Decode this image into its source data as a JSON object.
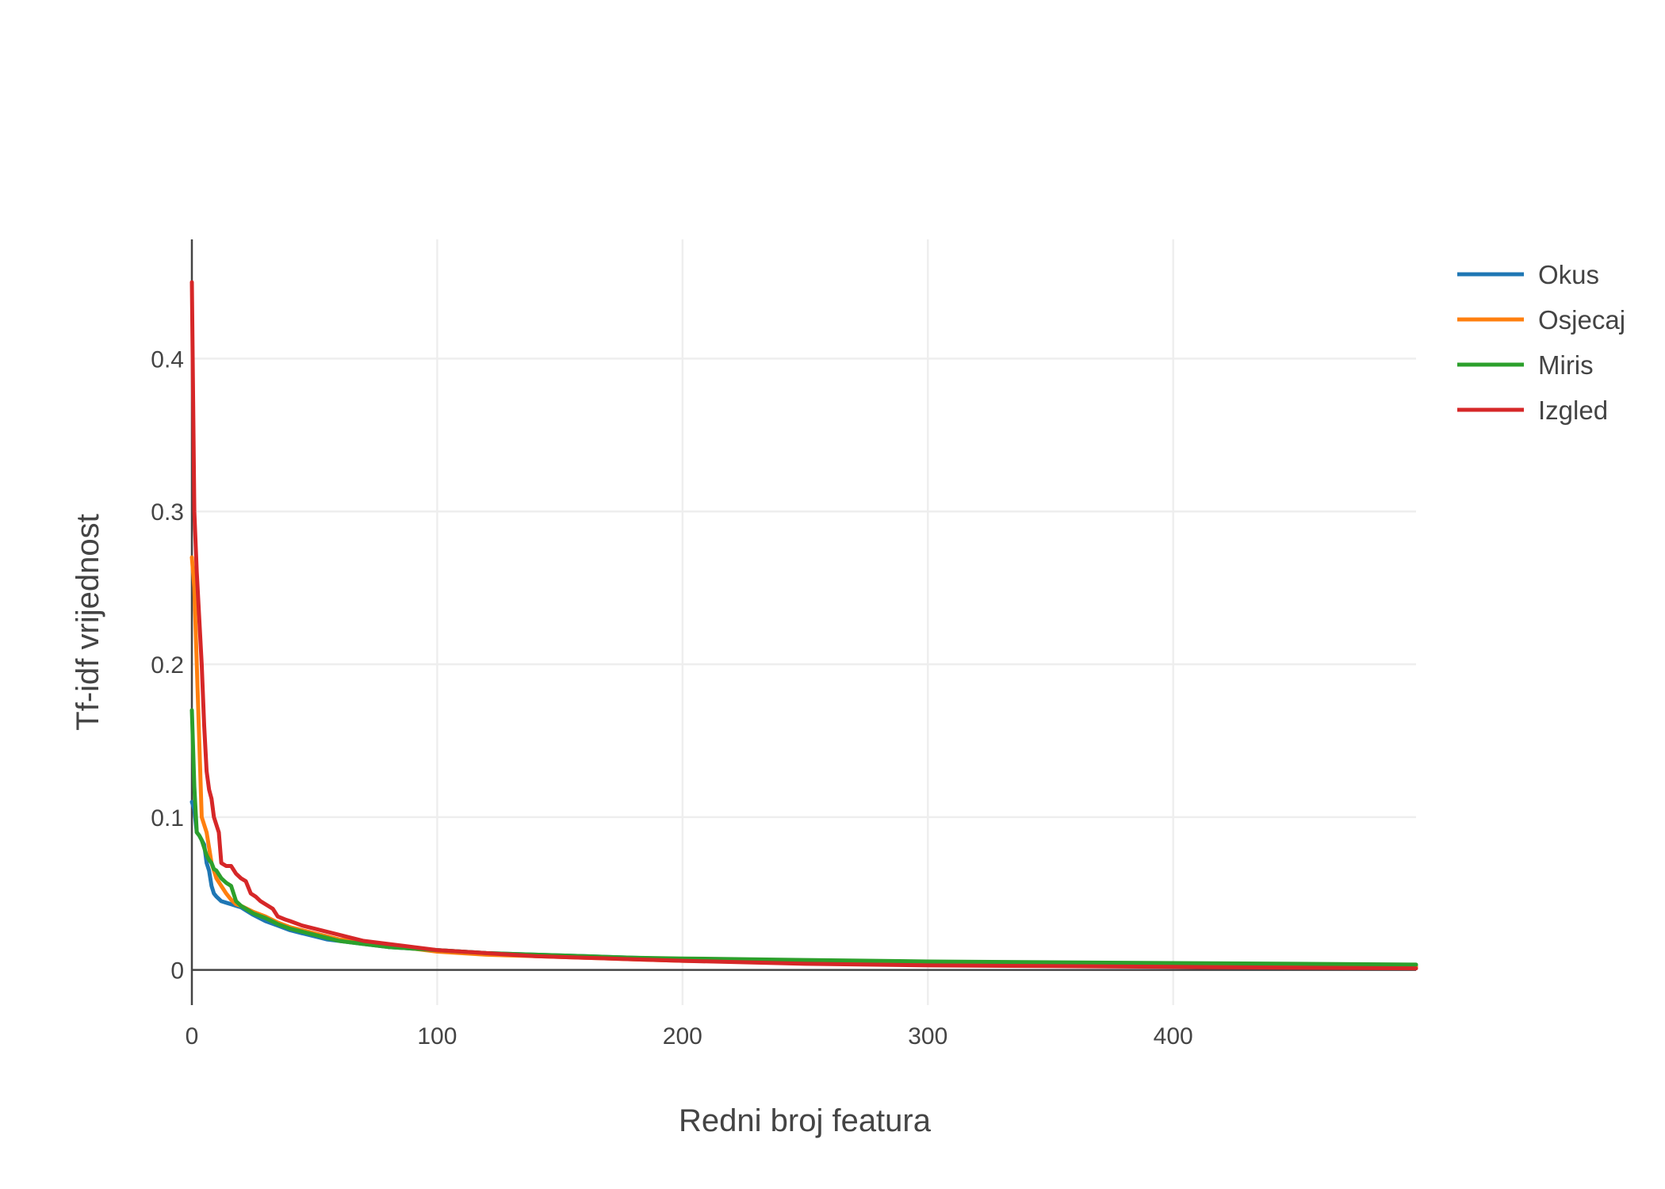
{
  "chart_data": {
    "type": "line",
    "title": "",
    "xlabel": "Redni broj featura",
    "ylabel": "Tf-idf vrijednost",
    "xlim": [
      0,
      499
    ],
    "ylim": [
      -0.023,
      0.478
    ],
    "grid": true,
    "legend_position": "top-right",
    "x_ticks": [
      {
        "value": 0,
        "label": "0"
      },
      {
        "value": 100,
        "label": "100"
      },
      {
        "value": 200,
        "label": "200"
      },
      {
        "value": 300,
        "label": "300"
      },
      {
        "value": 400,
        "label": "400"
      }
    ],
    "y_ticks": [
      {
        "value": 0,
        "label": "0"
      },
      {
        "value": 0.1,
        "label": "0.1"
      },
      {
        "value": 0.2,
        "label": "0.2"
      },
      {
        "value": 0.3,
        "label": "0.3"
      },
      {
        "value": 0.4,
        "label": "0.4"
      }
    ],
    "series": [
      {
        "name": "Okus",
        "color": "#1f77b4",
        "points": [
          [
            0,
            0.11
          ],
          [
            1,
            0.105
          ],
          [
            2,
            0.09
          ],
          [
            3,
            0.088
          ],
          [
            4,
            0.085
          ],
          [
            5,
            0.082
          ],
          [
            6,
            0.07
          ],
          [
            7,
            0.065
          ],
          [
            8,
            0.055
          ],
          [
            9,
            0.05
          ],
          [
            10,
            0.048
          ],
          [
            12,
            0.045
          ],
          [
            14,
            0.044
          ],
          [
            16,
            0.043
          ],
          [
            18,
            0.042
          ],
          [
            20,
            0.041
          ],
          [
            25,
            0.036
          ],
          [
            30,
            0.032
          ],
          [
            35,
            0.029
          ],
          [
            40,
            0.026
          ],
          [
            45,
            0.024
          ],
          [
            50,
            0.022
          ],
          [
            55,
            0.02
          ],
          [
            60,
            0.019
          ],
          [
            70,
            0.017
          ],
          [
            80,
            0.015
          ],
          [
            90,
            0.014
          ],
          [
            100,
            0.013
          ],
          [
            120,
            0.011
          ],
          [
            140,
            0.01
          ],
          [
            160,
            0.009
          ],
          [
            180,
            0.008
          ],
          [
            200,
            0.007
          ],
          [
            250,
            0.006
          ],
          [
            300,
            0.005
          ],
          [
            350,
            0.004
          ],
          [
            400,
            0.0035
          ],
          [
            450,
            0.003
          ],
          [
            499,
            0.0025
          ]
        ]
      },
      {
        "name": "Osjecaj",
        "color": "#ff7f0e",
        "points": [
          [
            0,
            0.27
          ],
          [
            1,
            0.25
          ],
          [
            2,
            0.2
          ],
          [
            3,
            0.15
          ],
          [
            4,
            0.1
          ],
          [
            5,
            0.095
          ],
          [
            6,
            0.09
          ],
          [
            7,
            0.08
          ],
          [
            8,
            0.07
          ],
          [
            9,
            0.065
          ],
          [
            10,
            0.06
          ],
          [
            12,
            0.055
          ],
          [
            14,
            0.05
          ],
          [
            16,
            0.046
          ],
          [
            18,
            0.043
          ],
          [
            20,
            0.042
          ],
          [
            25,
            0.038
          ],
          [
            30,
            0.035
          ],
          [
            35,
            0.031
          ],
          [
            40,
            0.028
          ],
          [
            45,
            0.026
          ],
          [
            50,
            0.024
          ],
          [
            55,
            0.022
          ],
          [
            60,
            0.02
          ],
          [
            70,
            0.018
          ],
          [
            80,
            0.016
          ],
          [
            90,
            0.014
          ],
          [
            100,
            0.012
          ],
          [
            120,
            0.01
          ],
          [
            140,
            0.009
          ],
          [
            160,
            0.008
          ],
          [
            180,
            0.007
          ],
          [
            200,
            0.006
          ],
          [
            250,
            0.005
          ],
          [
            300,
            0.004
          ],
          [
            350,
            0.0035
          ],
          [
            400,
            0.003
          ],
          [
            450,
            0.0025
          ],
          [
            499,
            0.002
          ]
        ]
      },
      {
        "name": "Miris",
        "color": "#2ca02c",
        "points": [
          [
            0,
            0.17
          ],
          [
            1,
            0.12
          ],
          [
            2,
            0.09
          ],
          [
            3,
            0.088
          ],
          [
            4,
            0.085
          ],
          [
            5,
            0.08
          ],
          [
            6,
            0.075
          ],
          [
            7,
            0.072
          ],
          [
            8,
            0.07
          ],
          [
            9,
            0.066
          ],
          [
            10,
            0.065
          ],
          [
            12,
            0.06
          ],
          [
            14,
            0.057
          ],
          [
            16,
            0.055
          ],
          [
            18,
            0.045
          ],
          [
            20,
            0.042
          ],
          [
            25,
            0.037
          ],
          [
            30,
            0.034
          ],
          [
            35,
            0.03
          ],
          [
            40,
            0.027
          ],
          [
            45,
            0.025
          ],
          [
            50,
            0.023
          ],
          [
            55,
            0.021
          ],
          [
            60,
            0.019
          ],
          [
            70,
            0.017
          ],
          [
            80,
            0.015
          ],
          [
            90,
            0.014
          ],
          [
            100,
            0.013
          ],
          [
            120,
            0.011
          ],
          [
            140,
            0.01
          ],
          [
            160,
            0.009
          ],
          [
            180,
            0.008
          ],
          [
            200,
            0.0075
          ],
          [
            250,
            0.0065
          ],
          [
            300,
            0.0055
          ],
          [
            350,
            0.005
          ],
          [
            400,
            0.0045
          ],
          [
            450,
            0.004
          ],
          [
            499,
            0.0035
          ]
        ]
      },
      {
        "name": "Izgled",
        "color": "#d62728",
        "points": [
          [
            0,
            0.45
          ],
          [
            1,
            0.3
          ],
          [
            2,
            0.26
          ],
          [
            3,
            0.23
          ],
          [
            4,
            0.2
          ],
          [
            5,
            0.16
          ],
          [
            6,
            0.13
          ],
          [
            7,
            0.118
          ],
          [
            8,
            0.112
          ],
          [
            9,
            0.1
          ],
          [
            10,
            0.095
          ],
          [
            11,
            0.09
          ],
          [
            12,
            0.07
          ],
          [
            14,
            0.068
          ],
          [
            16,
            0.068
          ],
          [
            18,
            0.063
          ],
          [
            20,
            0.06
          ],
          [
            22,
            0.058
          ],
          [
            24,
            0.05
          ],
          [
            26,
            0.048
          ],
          [
            28,
            0.045
          ],
          [
            30,
            0.043
          ],
          [
            33,
            0.04
          ],
          [
            35,
            0.035
          ],
          [
            38,
            0.033
          ],
          [
            40,
            0.032
          ],
          [
            45,
            0.029
          ],
          [
            50,
            0.027
          ],
          [
            55,
            0.025
          ],
          [
            60,
            0.023
          ],
          [
            65,
            0.021
          ],
          [
            70,
            0.019
          ],
          [
            80,
            0.017
          ],
          [
            90,
            0.015
          ],
          [
            100,
            0.013
          ],
          [
            120,
            0.011
          ],
          [
            140,
            0.009
          ],
          [
            160,
            0.008
          ],
          [
            180,
            0.007
          ],
          [
            200,
            0.006
          ],
          [
            250,
            0.004
          ],
          [
            300,
            0.003
          ],
          [
            350,
            0.0025
          ],
          [
            400,
            0.002
          ],
          [
            450,
            0.0015
          ],
          [
            499,
            0.001
          ]
        ]
      }
    ]
  }
}
